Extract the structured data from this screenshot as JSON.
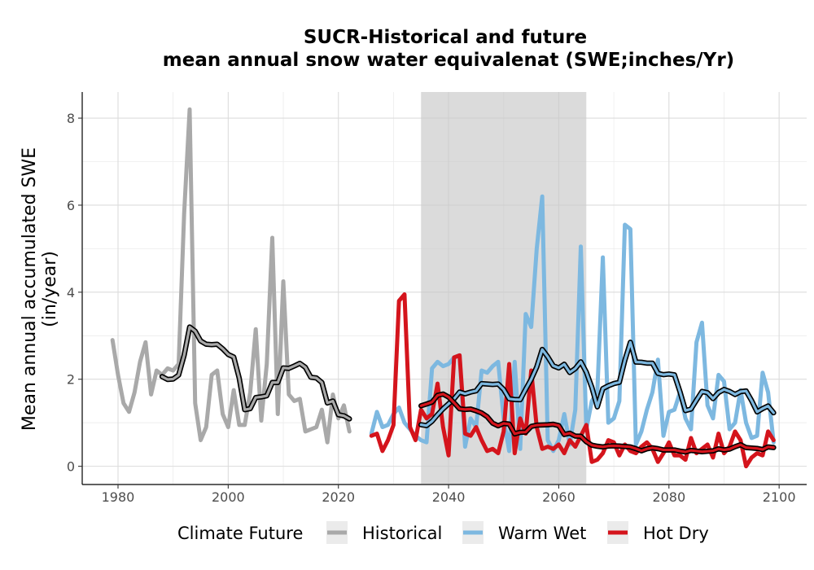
{
  "chart_data": {
    "type": "line",
    "title": "SUCR-Historical and future",
    "subtitle": "mean annual snow water equivalenat (SWE;inches/Yr)",
    "xlabel": "",
    "ylabel_line1": "Mean annual accumulated SWE",
    "ylabel_line2": "(in/year)",
    "xlim": [
      1973.5,
      2105
    ],
    "ylim": [
      -0.4,
      8.6
    ],
    "x_ticks": [
      1980,
      2000,
      2020,
      2040,
      2060,
      2080,
      2100
    ],
    "x_tick_labels": [
      "1980",
      "2000",
      "2020",
      "2040",
      "2060",
      "2080",
      "2100"
    ],
    "y_ticks": [
      0,
      2,
      4,
      6,
      8
    ],
    "y_tick_labels": [
      "0",
      "2",
      "4",
      "6",
      "8"
    ],
    "grid": true,
    "shaded_period": [
      2035,
      2065
    ],
    "legend": {
      "title": "Climate Future",
      "position": "bottom",
      "entries": [
        {
          "label": "Historical",
          "color": "#a9a9a9"
        },
        {
          "label": "Warm Wet",
          "color": "#7db8e0"
        },
        {
          "label": "Hot Dry",
          "color": "#d4141c"
        }
      ]
    },
    "series": [
      {
        "name": "Historical",
        "color": "#a9a9a9",
        "x": [
          1979,
          1980,
          1981,
          1982,
          1983,
          1984,
          1985,
          1986,
          1987,
          1988,
          1989,
          1990,
          1991,
          1992,
          1993,
          1994,
          1995,
          1996,
          1997,
          1998,
          1999,
          2000,
          2001,
          2002,
          2003,
          2004,
          2005,
          2006,
          2007,
          2008,
          2009,
          2010,
          2011,
          2012,
          2013,
          2014,
          2015,
          2016,
          2017,
          2018,
          2019,
          2020,
          2021,
          2022
        ],
        "values": [
          2.9,
          2.1,
          1.45,
          1.25,
          1.7,
          2.4,
          2.85,
          1.65,
          2.2,
          2.1,
          2.25,
          2.2,
          2.35,
          5.8,
          8.2,
          1.45,
          0.6,
          0.9,
          2.1,
          2.2,
          1.2,
          0.9,
          1.75,
          0.95,
          0.95,
          1.7,
          3.15,
          1.05,
          2.35,
          5.25,
          1.2,
          4.25,
          1.65,
          1.5,
          1.55,
          0.8,
          0.85,
          0.9,
          1.3,
          0.55,
          1.65,
          1.1,
          1.4,
          0.8
        ]
      },
      {
        "name": "Warm Wet",
        "color": "#7db8e0",
        "x": [
          2026,
          2027,
          2028,
          2029,
          2030,
          2031,
          2032,
          2033,
          2034,
          2035,
          2036,
          2037,
          2038,
          2039,
          2040,
          2041,
          2042,
          2043,
          2044,
          2045,
          2046,
          2047,
          2048,
          2049,
          2050,
          2051,
          2052,
          2053,
          2054,
          2055,
          2056,
          2057,
          2058,
          2059,
          2060,
          2061,
          2062,
          2063,
          2064,
          2065,
          2066,
          2067,
          2068,
          2069,
          2070,
          2071,
          2072,
          2073,
          2074,
          2075,
          2076,
          2077,
          2078,
          2079,
          2080,
          2081,
          2082,
          2083,
          2084,
          2085,
          2086,
          2087,
          2088,
          2089,
          2090,
          2091,
          2092,
          2093,
          2094,
          2095,
          2096,
          2097,
          2098,
          2099
        ],
        "values": [
          0.75,
          1.25,
          0.9,
          0.95,
          1.2,
          1.35,
          1.0,
          0.85,
          0.7,
          0.6,
          0.55,
          2.25,
          2.4,
          2.3,
          2.35,
          2.5,
          2.55,
          0.45,
          1.1,
          0.9,
          2.2,
          2.15,
          2.3,
          2.4,
          1.1,
          0.35,
          2.4,
          0.4,
          3.5,
          3.2,
          5.0,
          6.2,
          0.6,
          0.35,
          0.6,
          1.2,
          0.5,
          1.3,
          5.05,
          0.85,
          1.5,
          1.7,
          4.8,
          1.0,
          1.1,
          1.5,
          5.55,
          5.45,
          0.5,
          0.8,
          1.3,
          1.7,
          2.45,
          0.7,
          1.25,
          1.3,
          1.7,
          1.1,
          0.85,
          2.85,
          3.3,
          1.4,
          1.1,
          2.1,
          1.95,
          0.85,
          1.0,
          1.75,
          1.0,
          0.65,
          0.7,
          2.15,
          1.7,
          0.55
        ]
      },
      {
        "name": "Hot Dry",
        "color": "#d4141c",
        "x": [
          2026,
          2027,
          2028,
          2029,
          2030,
          2031,
          2032,
          2033,
          2034,
          2035,
          2036,
          2037,
          2038,
          2039,
          2040,
          2041,
          2042,
          2043,
          2044,
          2045,
          2046,
          2047,
          2048,
          2049,
          2050,
          2051,
          2052,
          2053,
          2054,
          2055,
          2056,
          2057,
          2058,
          2059,
          2060,
          2061,
          2062,
          2063,
          2064,
          2065,
          2066,
          2067,
          2068,
          2069,
          2070,
          2071,
          2072,
          2073,
          2074,
          2075,
          2076,
          2077,
          2078,
          2079,
          2080,
          2081,
          2082,
          2083,
          2084,
          2085,
          2086,
          2087,
          2088,
          2089,
          2090,
          2091,
          2092,
          2093,
          2094,
          2095,
          2096,
          2097,
          2098,
          2099
        ],
        "values": [
          0.7,
          0.75,
          0.35,
          0.6,
          0.95,
          3.8,
          3.95,
          0.9,
          0.6,
          1.3,
          1.1,
          1.2,
          1.9,
          0.9,
          0.25,
          2.5,
          2.55,
          0.75,
          0.7,
          0.9,
          0.6,
          0.35,
          0.4,
          0.3,
          0.8,
          2.35,
          0.3,
          1.1,
          0.75,
          2.2,
          0.9,
          0.4,
          0.45,
          0.4,
          0.5,
          0.3,
          0.6,
          0.45,
          0.7,
          0.95,
          0.1,
          0.15,
          0.3,
          0.6,
          0.55,
          0.25,
          0.5,
          0.35,
          0.3,
          0.45,
          0.55,
          0.4,
          0.1,
          0.3,
          0.55,
          0.25,
          0.25,
          0.15,
          0.65,
          0.3,
          0.4,
          0.5,
          0.2,
          0.75,
          0.3,
          0.45,
          0.8,
          0.6,
          0.0,
          0.2,
          0.3,
          0.25,
          0.8,
          0.6
        ]
      }
    ]
  }
}
